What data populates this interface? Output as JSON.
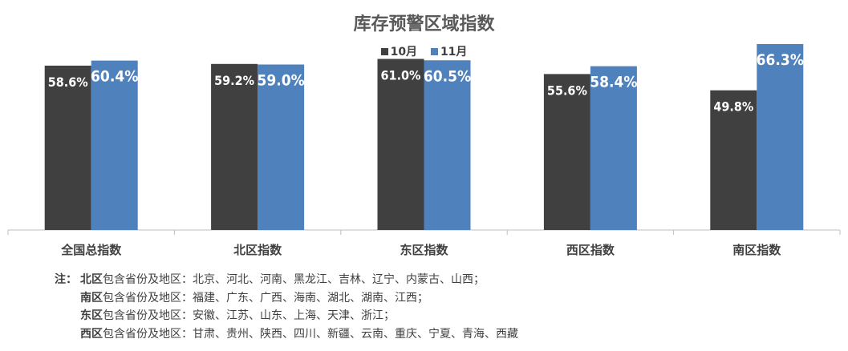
{
  "chart_data": {
    "type": "bar",
    "title": "库存预警区域指数",
    "categories": [
      "全国总指数",
      "北区指数",
      "东区指数",
      "西区指数",
      "南区指数"
    ],
    "series": [
      {
        "name": "10月",
        "values": [
          58.6,
          59.2,
          61.0,
          55.6,
          49.8
        ],
        "labels": [
          "58.6%",
          "59.2%",
          "61.0%",
          "55.6%",
          "49.8%"
        ],
        "color": "#404040"
      },
      {
        "name": "11月",
        "values": [
          60.4,
          59.0,
          60.5,
          58.4,
          66.3
        ],
        "labels": [
          "60.4%",
          "59.0%",
          "60.5%",
          "58.4%",
          "66.3%"
        ],
        "color": "#4f81bd"
      }
    ],
    "ylim": [
      0,
      70
    ],
    "grid": false,
    "legend_position": "top-center"
  },
  "notes": {
    "prefix": "注：",
    "lines": [
      {
        "region": "北区",
        "text": "包含省份及地区：北京、河北、河南、黑龙江、吉林、辽宁、内蒙古、山西；"
      },
      {
        "region": "南区",
        "text": "包含省份及地区：福建、广东、广西、海南、湖北、湖南、江西；"
      },
      {
        "region": "东区",
        "text": "包含省份及地区：安徽、江苏、山东、上海、天津、浙江；"
      },
      {
        "region": "西区",
        "text": "包含省份及地区：甘肃、贵州、陕西、四川、新疆、云南、重庆、宁夏、青海、西藏"
      }
    ]
  }
}
